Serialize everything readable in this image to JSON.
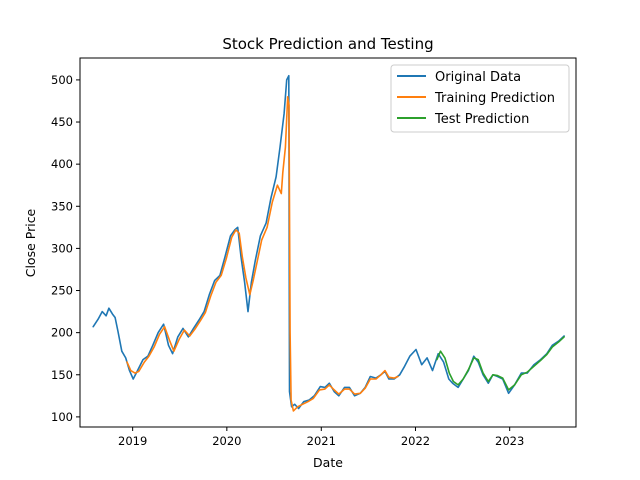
{
  "chart_data": {
    "type": "line",
    "title": "Stock Prediction and Testing",
    "xlabel": "Date",
    "ylabel": "Close Price",
    "xlim": [
      "2018-06-11",
      "2023-09-15"
    ],
    "ylim": [
      88,
      526
    ],
    "x_ticks": [
      "2019-01-01",
      "2020-01-01",
      "2021-01-01",
      "2022-01-01",
      "2023-01-01"
    ],
    "x_tick_labels": [
      "2019",
      "2020",
      "2021",
      "2022",
      "2023"
    ],
    "y_ticks": [
      100,
      150,
      200,
      250,
      300,
      350,
      400,
      450,
      500
    ],
    "y_tick_labels": [
      "100",
      "150",
      "200",
      "250",
      "300",
      "350",
      "400",
      "450",
      "500"
    ],
    "grid": false,
    "legend_position": "top-right",
    "series": [
      {
        "name": "Original Data",
        "color": "#1f77b4",
        "points": [
          [
            "2018-08-01",
            207
          ],
          [
            "2018-08-20",
            216
          ],
          [
            "2018-09-05",
            225
          ],
          [
            "2018-09-20",
            220
          ],
          [
            "2018-10-01",
            229
          ],
          [
            "2018-10-15",
            222
          ],
          [
            "2018-10-25",
            218
          ],
          [
            "2018-11-05",
            202
          ],
          [
            "2018-11-20",
            178
          ],
          [
            "2018-12-05",
            170
          ],
          [
            "2018-12-20",
            155
          ],
          [
            "2019-01-03",
            145
          ],
          [
            "2019-01-20",
            155
          ],
          [
            "2019-02-10",
            168
          ],
          [
            "2019-03-01",
            172
          ],
          [
            "2019-03-20",
            185
          ],
          [
            "2019-04-10",
            200
          ],
          [
            "2019-05-01",
            210
          ],
          [
            "2019-05-20",
            185
          ],
          [
            "2019-06-05",
            175
          ],
          [
            "2019-06-25",
            195
          ],
          [
            "2019-07-15",
            205
          ],
          [
            "2019-08-05",
            195
          ],
          [
            "2019-08-25",
            205
          ],
          [
            "2019-09-15",
            215
          ],
          [
            "2019-10-05",
            225
          ],
          [
            "2019-10-25",
            245
          ],
          [
            "2019-11-15",
            262
          ],
          [
            "2019-12-05",
            268
          ],
          [
            "2019-12-25",
            290
          ],
          [
            "2020-01-15",
            315
          ],
          [
            "2020-02-01",
            322
          ],
          [
            "2020-02-12",
            325
          ],
          [
            "2020-02-25",
            290
          ],
          [
            "2020-03-10",
            260
          ],
          [
            "2020-03-23",
            225
          ],
          [
            "2020-04-05",
            260
          ],
          [
            "2020-04-20",
            285
          ],
          [
            "2020-05-10",
            315
          ],
          [
            "2020-06-01",
            330
          ],
          [
            "2020-06-20",
            360
          ],
          [
            "2020-07-10",
            385
          ],
          [
            "2020-07-25",
            420
          ],
          [
            "2020-08-10",
            460
          ],
          [
            "2020-08-20",
            500
          ],
          [
            "2020-08-28",
            505
          ],
          [
            "2020-08-31",
            130
          ],
          [
            "2020-09-08",
            112
          ],
          [
            "2020-09-20",
            115
          ],
          [
            "2020-10-05",
            110
          ],
          [
            "2020-10-25",
            118
          ],
          [
            "2020-11-15",
            120
          ],
          [
            "2020-12-05",
            125
          ],
          [
            "2020-12-28",
            136
          ],
          [
            "2021-01-15",
            135
          ],
          [
            "2021-02-01",
            140
          ],
          [
            "2021-02-20",
            130
          ],
          [
            "2021-03-10",
            125
          ],
          [
            "2021-04-01",
            135
          ],
          [
            "2021-04-20",
            135
          ],
          [
            "2021-05-10",
            125
          ],
          [
            "2021-06-01",
            128
          ],
          [
            "2021-06-20",
            135
          ],
          [
            "2021-07-10",
            148
          ],
          [
            "2021-08-01",
            146
          ],
          [
            "2021-08-20",
            150
          ],
          [
            "2021-09-05",
            154
          ],
          [
            "2021-09-20",
            145
          ],
          [
            "2021-10-10",
            145
          ],
          [
            "2021-11-01",
            150
          ],
          [
            "2021-11-20",
            160
          ],
          [
            "2021-12-10",
            172
          ],
          [
            "2022-01-03",
            180
          ],
          [
            "2022-01-25",
            162
          ],
          [
            "2022-02-15",
            170
          ],
          [
            "2022-03-08",
            155
          ],
          [
            "2022-03-30",
            175
          ],
          [
            "2022-04-20",
            165
          ],
          [
            "2022-05-10",
            145
          ],
          [
            "2022-05-25",
            140
          ],
          [
            "2022-06-15",
            135
          ],
          [
            "2022-07-05",
            145
          ],
          [
            "2022-07-25",
            155
          ],
          [
            "2022-08-15",
            172
          ],
          [
            "2022-09-01",
            165
          ],
          [
            "2022-09-20",
            150
          ],
          [
            "2022-10-10",
            140
          ],
          [
            "2022-10-28",
            150
          ],
          [
            "2022-11-15",
            148
          ],
          [
            "2022-12-05",
            145
          ],
          [
            "2022-12-28",
            128
          ],
          [
            "2023-01-20",
            138
          ],
          [
            "2023-02-15",
            152
          ],
          [
            "2023-03-10",
            152
          ],
          [
            "2023-04-05",
            162
          ],
          [
            "2023-05-01",
            168
          ],
          [
            "2023-05-25",
            175
          ],
          [
            "2023-06-15",
            185
          ],
          [
            "2023-07-10",
            190
          ],
          [
            "2023-07-31",
            196
          ]
        ]
      },
      {
        "name": "Training Prediction",
        "color": "#ff7f0e",
        "points": [
          [
            "2018-12-10",
            165
          ],
          [
            "2018-12-25",
            155
          ],
          [
            "2019-01-10",
            152
          ],
          [
            "2019-01-25",
            154
          ],
          [
            "2019-02-15",
            165
          ],
          [
            "2019-03-05",
            172
          ],
          [
            "2019-03-25",
            183
          ],
          [
            "2019-04-15",
            198
          ],
          [
            "2019-05-05",
            207
          ],
          [
            "2019-05-25",
            190
          ],
          [
            "2019-06-10",
            178
          ],
          [
            "2019-06-30",
            192
          ],
          [
            "2019-07-20",
            203
          ],
          [
            "2019-08-10",
            196
          ],
          [
            "2019-08-30",
            204
          ],
          [
            "2019-09-20",
            214
          ],
          [
            "2019-10-10",
            224
          ],
          [
            "2019-10-30",
            243
          ],
          [
            "2019-11-20",
            260
          ],
          [
            "2019-12-10",
            268
          ],
          [
            "2019-12-30",
            288
          ],
          [
            "2020-01-20",
            313
          ],
          [
            "2020-02-05",
            322
          ],
          [
            "2020-02-18",
            318
          ],
          [
            "2020-03-01",
            290
          ],
          [
            "2020-03-15",
            265
          ],
          [
            "2020-03-30",
            245
          ],
          [
            "2020-04-12",
            262
          ],
          [
            "2020-04-28",
            285
          ],
          [
            "2020-05-15",
            310
          ],
          [
            "2020-06-05",
            325
          ],
          [
            "2020-06-25",
            355
          ],
          [
            "2020-07-15",
            375
          ],
          [
            "2020-07-30",
            365
          ],
          [
            "2020-08-05",
            390
          ],
          [
            "2020-08-15",
            420
          ],
          [
            "2020-08-24",
            480
          ],
          [
            "2020-08-29",
            470
          ],
          [
            "2020-09-02",
            200
          ],
          [
            "2020-09-06",
            120
          ],
          [
            "2020-09-15",
            107
          ],
          [
            "2020-10-01",
            112
          ],
          [
            "2020-10-20",
            115
          ],
          [
            "2020-11-10",
            118
          ],
          [
            "2020-12-01",
            122
          ],
          [
            "2020-12-25",
            132
          ],
          [
            "2021-01-15",
            133
          ],
          [
            "2021-02-01",
            138
          ],
          [
            "2021-02-20",
            132
          ],
          [
            "2021-03-10",
            127
          ],
          [
            "2021-04-01",
            133
          ],
          [
            "2021-04-20",
            133
          ],
          [
            "2021-05-10",
            127
          ],
          [
            "2021-06-01",
            128
          ],
          [
            "2021-06-20",
            134
          ],
          [
            "2021-07-10",
            145
          ],
          [
            "2021-08-01",
            145
          ],
          [
            "2021-08-20",
            150
          ],
          [
            "2021-09-05",
            155
          ],
          [
            "2021-09-20",
            147
          ],
          [
            "2021-10-10",
            146
          ],
          [
            "2021-10-25",
            148
          ]
        ]
      },
      {
        "name": "Test Prediction",
        "color": "#2ca02c",
        "points": [
          [
            "2022-03-25",
            168
          ],
          [
            "2022-04-08",
            178
          ],
          [
            "2022-04-25",
            170
          ],
          [
            "2022-05-12",
            152
          ],
          [
            "2022-05-28",
            142
          ],
          [
            "2022-06-15",
            138
          ],
          [
            "2022-07-05",
            145
          ],
          [
            "2022-07-25",
            156
          ],
          [
            "2022-08-15",
            170
          ],
          [
            "2022-09-01",
            168
          ],
          [
            "2022-09-20",
            152
          ],
          [
            "2022-10-10",
            142
          ],
          [
            "2022-10-28",
            150
          ],
          [
            "2022-11-15",
            149
          ],
          [
            "2022-12-05",
            146
          ],
          [
            "2022-12-28",
            132
          ],
          [
            "2023-01-20",
            138
          ],
          [
            "2023-02-15",
            150
          ],
          [
            "2023-03-10",
            153
          ],
          [
            "2023-04-05",
            160
          ],
          [
            "2023-05-01",
            167
          ],
          [
            "2023-05-25",
            174
          ],
          [
            "2023-06-15",
            183
          ],
          [
            "2023-07-10",
            189
          ],
          [
            "2023-07-31",
            195
          ]
        ]
      }
    ]
  }
}
